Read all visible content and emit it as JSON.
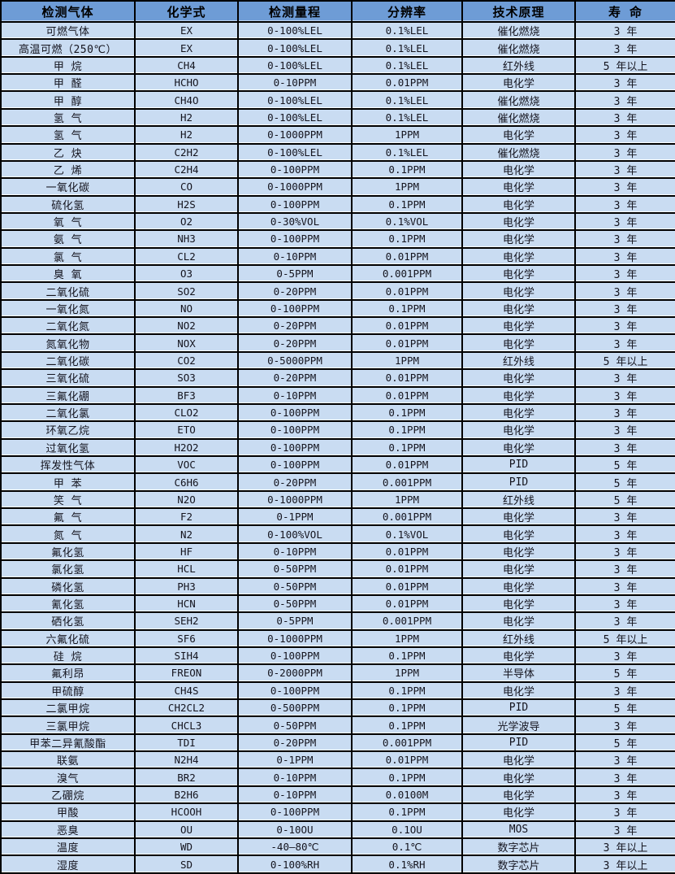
{
  "colors": {
    "header_bg": "#6e9cd6",
    "row_bg": "#c9dcf2",
    "border": "#000000",
    "header_text": "#000000",
    "cell_text": "#14141e"
  },
  "table": {
    "columns": [
      {
        "key": "gas",
        "label": "检测气体"
      },
      {
        "key": "formula",
        "label": "化学式"
      },
      {
        "key": "range",
        "label": "检测量程"
      },
      {
        "key": "resolution",
        "label": "分辨率"
      },
      {
        "key": "principle",
        "label": "技术原理"
      },
      {
        "key": "life",
        "label": "寿 命"
      }
    ],
    "rows": [
      [
        "可燃气体",
        "EX",
        "0-100%LEL",
        "0.1%LEL",
        "催化燃烧",
        "3 年"
      ],
      [
        "高温可燃（250℃）",
        "EX",
        "0-100%LEL",
        "0.1%LEL",
        "催化燃烧",
        "3 年"
      ],
      [
        "甲 烷",
        "CH4",
        "0-100%LEL",
        "0.1%LEL",
        "红外线",
        "5 年以上"
      ],
      [
        "甲 醛",
        "HCHO",
        "0-10PPM",
        "0.01PPM",
        "电化学",
        "3 年"
      ],
      [
        "甲 醇",
        "CH4O",
        "0-100%LEL",
        "0.1%LEL",
        "催化燃烧",
        "3 年"
      ],
      [
        "氢 气",
        "H2",
        "0-100%LEL",
        "0.1%LEL",
        "催化燃烧",
        "3 年"
      ],
      [
        "氢 气",
        "H2",
        "0-1000PPM",
        "1PPM",
        "电化学",
        "3 年"
      ],
      [
        "乙 炔",
        "C2H2",
        "0-100%LEL",
        "0.1%LEL",
        "催化燃烧",
        "3 年"
      ],
      [
        "乙 烯",
        "C2H4",
        "0-100PPM",
        "0.1PPM",
        "电化学",
        "3 年"
      ],
      [
        "一氧化碳",
        "CO",
        "0-1000PPM",
        "1PPM",
        "电化学",
        "3 年"
      ],
      [
        "硫化氢",
        "H2S",
        "0-100PPM",
        "0.1PPM",
        "电化学",
        "3 年"
      ],
      [
        "氧 气",
        "O2",
        "0-30%VOL",
        "0.1%VOL",
        "电化学",
        "3 年"
      ],
      [
        "氨 气",
        "NH3",
        "0-100PPM",
        "0.1PPM",
        "电化学",
        "3 年"
      ],
      [
        "氯 气",
        "CL2",
        "0-10PPM",
        "0.01PPM",
        "电化学",
        "3 年"
      ],
      [
        "臭 氧",
        "O3",
        "0-5PPM",
        "0.001PPM",
        "电化学",
        "3 年"
      ],
      [
        "二氧化硫",
        "SO2",
        "0-20PPM",
        "0.01PPM",
        "电化学",
        "3 年"
      ],
      [
        "一氧化氮",
        "NO",
        "0-100PPM",
        "0.1PPM",
        "电化学",
        "3 年"
      ],
      [
        "二氧化氮",
        "NO2",
        "0-20PPM",
        "0.01PPM",
        "电化学",
        "3 年"
      ],
      [
        "氮氧化物",
        "NOX",
        "0-20PPM",
        "0.01PPM",
        "电化学",
        "3 年"
      ],
      [
        "二氧化碳",
        "CO2",
        "0-5000PPM",
        "1PPM",
        "红外线",
        "5 年以上"
      ],
      [
        "三氧化硫",
        "SO3",
        "0-20PPM",
        "0.01PPM",
        "电化学",
        "3 年"
      ],
      [
        "三氟化硼",
        "BF3",
        "0-10PPM",
        "0.01PPM",
        "电化学",
        "3 年"
      ],
      [
        "二氧化氯",
        "CLO2",
        "0-100PPM",
        "0.1PPM",
        "电化学",
        "3 年"
      ],
      [
        "环氧乙烷",
        "ETO",
        "0-100PPM",
        "0.1PPM",
        "电化学",
        "3 年"
      ],
      [
        "过氧化氢",
        "H2O2",
        "0-100PPM",
        "0.1PPM",
        "电化学",
        "3 年"
      ],
      [
        "挥发性气体",
        "VOC",
        "0-100PPM",
        "0.01PPM",
        "PID",
        "5 年"
      ],
      [
        "甲 苯",
        "C6H6",
        "0-20PPM",
        "0.001PPM",
        "PID",
        "5 年"
      ],
      [
        "笑 气",
        "N2O",
        "0-1000PPM",
        "1PPM",
        "红外线",
        "5 年"
      ],
      [
        "氟 气",
        "F2",
        "0-1PPM",
        "0.001PPM",
        "电化学",
        "3 年"
      ],
      [
        "氮 气",
        "N2",
        "0-100%VOL",
        "0.1%VOL",
        "电化学",
        "3 年"
      ],
      [
        "氟化氢",
        "HF",
        "0-10PPM",
        "0.01PPM",
        "电化学",
        "3 年"
      ],
      [
        "氯化氢",
        "HCL",
        "0-50PPM",
        "0.01PPM",
        "电化学",
        "3 年"
      ],
      [
        "磷化氢",
        "PH3",
        "0-50PPM",
        "0.01PPM",
        "电化学",
        "3 年"
      ],
      [
        "氰化氢",
        "HCN",
        "0-50PPM",
        "0.01PPM",
        "电化学",
        "3 年"
      ],
      [
        "硒化氢",
        "SEH2",
        "0-5PPM",
        "0.001PPM",
        "电化学",
        "3 年"
      ],
      [
        "六氟化硫",
        "SF6",
        "0-1000PPM",
        "1PPM",
        "红外线",
        "5 年以上"
      ],
      [
        "硅 烷",
        "SIH4",
        "0-100PPM",
        "0.1PPM",
        "电化学",
        "3 年"
      ],
      [
        "氟利昂",
        "FREON",
        "0-2000PPM",
        "1PPM",
        "半导体",
        "5 年"
      ],
      [
        "甲硫醇",
        "CH4S",
        "0-100PPM",
        "0.1PPM",
        "电化学",
        "3 年"
      ],
      [
        "二氯甲烷",
        "CH2CL2",
        "0-500PPM",
        "0.1PPM",
        "PID",
        "5 年"
      ],
      [
        "三氯甲烷",
        "CHCL3",
        "0-50PPM",
        "0.1PPM",
        "光学波导",
        "3 年"
      ],
      [
        "甲苯二异氰酸酯",
        "TDI",
        "0-20PPM",
        "0.001PPM",
        "PID",
        "5 年"
      ],
      [
        "联氨",
        "N2H4",
        "0-1PPM",
        "0.01PPM",
        "电化学",
        "3 年"
      ],
      [
        "溴气",
        "BR2",
        "0-10PPM",
        "0.1PPM",
        "电化学",
        "3 年"
      ],
      [
        "乙硼烷",
        "B2H6",
        "0-10PPM",
        "0.0100M",
        "电化学",
        "3 年"
      ],
      [
        "甲酸",
        "HCOOH",
        "0-100PPM",
        "0.1PPM",
        "电化学",
        "3 年"
      ],
      [
        "恶臭",
        "OU",
        "0-10OU",
        "0.1OU",
        "MOS",
        "3 年"
      ],
      [
        "温度",
        "WD",
        "-40—80℃",
        "0.1℃",
        "数字芯片",
        "3 年以上"
      ],
      [
        "湿度",
        "SD",
        "0-100%RH",
        "0.1%RH",
        "数字芯片",
        "3 年以上"
      ]
    ]
  }
}
